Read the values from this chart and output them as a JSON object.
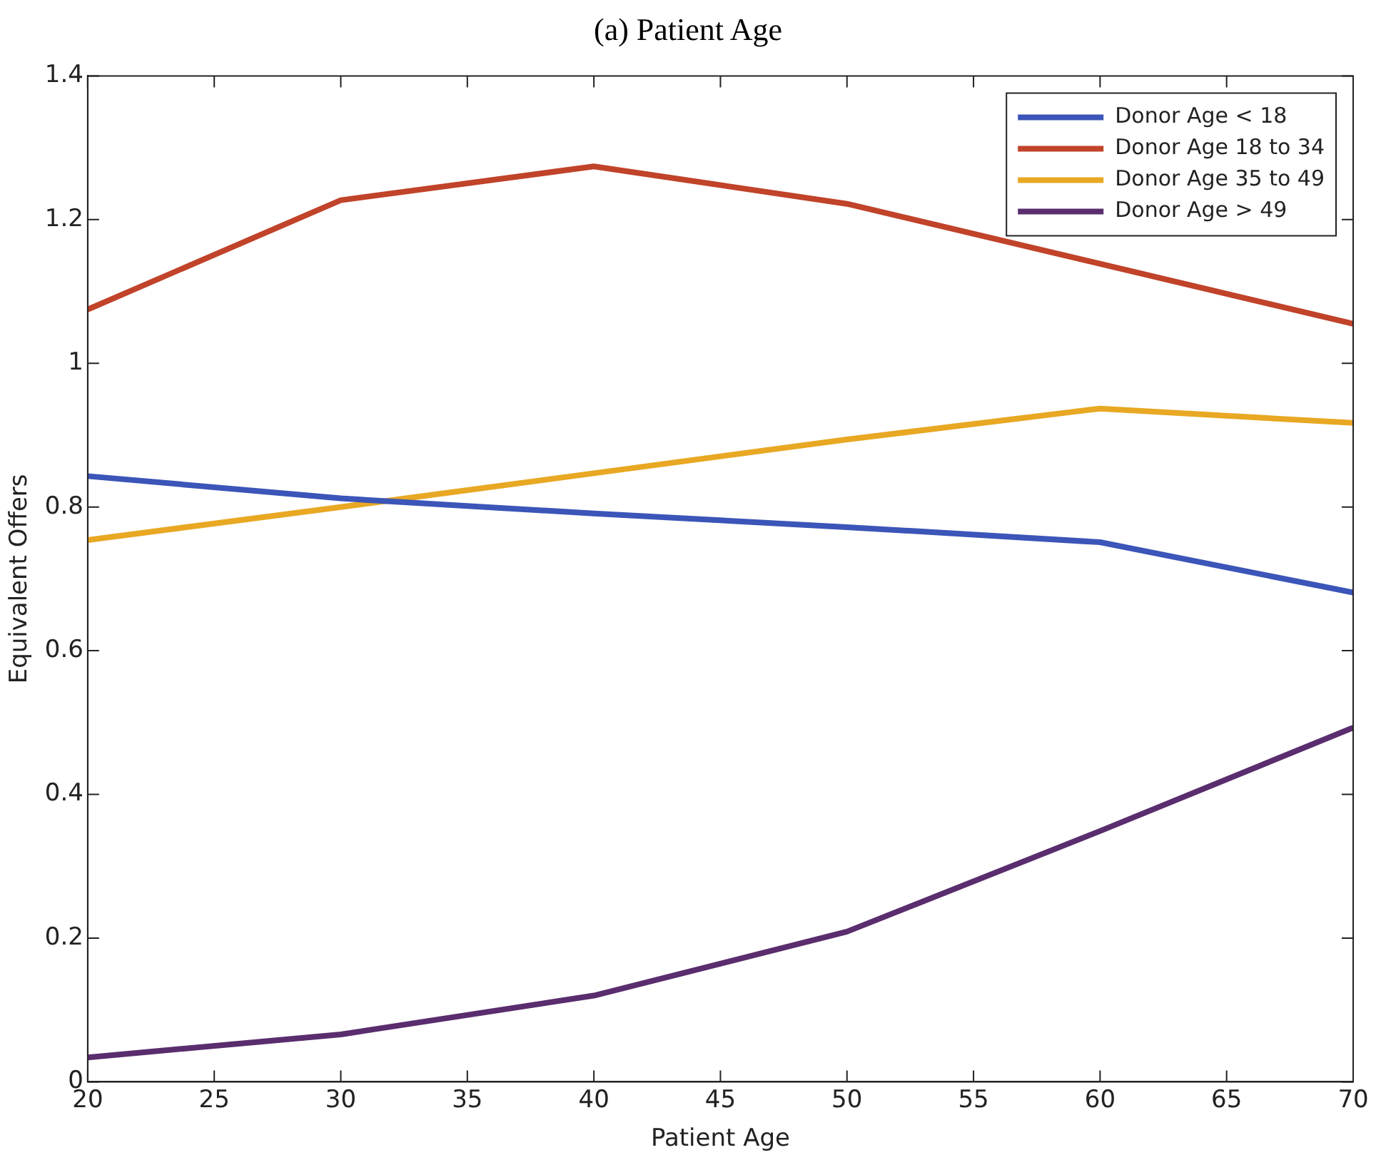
{
  "chart_data": {
    "type": "line",
    "title": "(a) Patient Age",
    "xlabel": "Patient Age",
    "ylabel": "Equivalent Offers",
    "x": [
      20,
      30,
      40,
      50,
      60,
      70
    ],
    "series": [
      {
        "name": "Donor Age < 18",
        "color": "#3b55b8",
        "values": [
          0.843,
          0.812,
          0.791,
          0.772,
          0.751,
          0.681
        ]
      },
      {
        "name": "Donor Age 18 to 34",
        "color": "#c0432a",
        "values": [
          1.075,
          1.227,
          1.274,
          1.222,
          null,
          1.055
        ]
      },
      {
        "name": "Donor Age 35 to 49",
        "color": "#e8a823",
        "values": [
          0.754,
          0.8,
          0.847,
          0.894,
          0.937,
          0.917
        ]
      },
      {
        "name": "Donor Age > 49",
        "color": "#5a2d6e",
        "values": [
          0.034,
          0.066,
          0.12,
          0.209,
          0.349,
          0.493
        ]
      }
    ],
    "xlim": [
      20,
      70
    ],
    "xticks": [
      20,
      25,
      30,
      35,
      40,
      45,
      50,
      55,
      60,
      65,
      70
    ],
    "ylim": [
      0,
      1.4
    ],
    "yticks": [
      0,
      0.2,
      0.4,
      0.6,
      0.8,
      1,
      1.2,
      1.4
    ],
    "grid": false,
    "legend": "top right",
    "marker": "none",
    "line_style": "solid"
  }
}
